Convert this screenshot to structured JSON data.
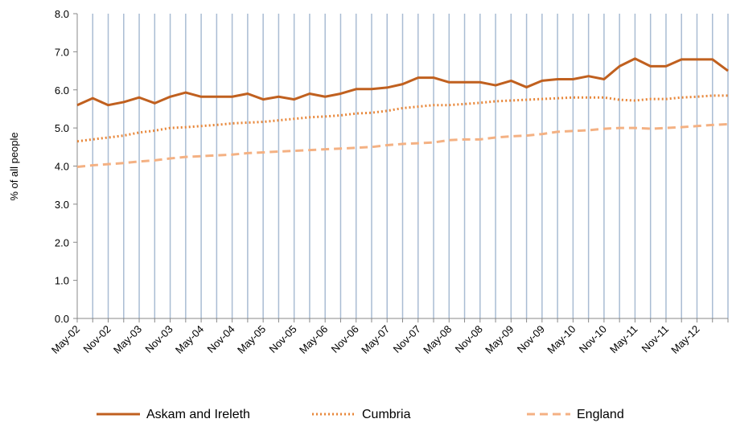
{
  "chart_data": {
    "type": "line",
    "y_label": "% of all people",
    "categories": [
      "May-02",
      null,
      "Nov-02",
      null,
      "May-03",
      null,
      "Nov-03",
      null,
      "May-04",
      null,
      "Nov-04",
      null,
      "May-05",
      null,
      "Nov-05",
      null,
      "May-06",
      null,
      "Nov-06",
      null,
      "May-07",
      null,
      "Nov-07",
      null,
      "May-08",
      null,
      "Nov-08",
      null,
      "May-09",
      null,
      "Nov-09",
      null,
      "May-10",
      null,
      "Nov-10",
      null,
      "May-11",
      null,
      "Nov-11",
      null,
      "May-12",
      null,
      null
    ],
    "series": [
      {
        "name": "Askam and Ireleth",
        "color": "#c0601f",
        "style": "solid",
        "values": [
          5.6,
          5.78,
          5.6,
          5.68,
          5.8,
          5.65,
          5.82,
          5.93,
          5.82,
          5.82,
          5.82,
          5.9,
          5.75,
          5.82,
          5.75,
          5.9,
          5.82,
          5.9,
          6.02,
          6.02,
          6.06,
          6.15,
          6.32,
          6.32,
          6.2,
          6.2,
          6.2,
          6.12,
          6.24,
          6.07,
          6.24,
          6.28,
          6.28,
          6.36,
          6.28,
          6.62,
          6.82,
          6.62,
          6.62,
          6.8,
          6.8,
          6.8,
          6.5
        ]
      },
      {
        "name": "Cumbria",
        "color": "#e8873a",
        "style": "dotted",
        "values": [
          4.65,
          4.7,
          4.75,
          4.8,
          4.88,
          4.93,
          5.0,
          5.02,
          5.05,
          5.08,
          5.12,
          5.14,
          5.16,
          5.2,
          5.24,
          5.28,
          5.3,
          5.33,
          5.38,
          5.4,
          5.45,
          5.52,
          5.56,
          5.6,
          5.6,
          5.63,
          5.66,
          5.7,
          5.72,
          5.74,
          5.76,
          5.78,
          5.8,
          5.8,
          5.8,
          5.74,
          5.72,
          5.76,
          5.76,
          5.8,
          5.82,
          5.85,
          5.85
        ]
      },
      {
        "name": "England",
        "color": "#f4b183",
        "style": "dashed",
        "values": [
          3.98,
          4.02,
          4.05,
          4.08,
          4.12,
          4.15,
          4.2,
          4.24,
          4.26,
          4.28,
          4.3,
          4.34,
          4.36,
          4.38,
          4.4,
          4.42,
          4.44,
          4.46,
          4.48,
          4.5,
          4.55,
          4.58,
          4.6,
          4.62,
          4.68,
          4.7,
          4.7,
          4.75,
          4.78,
          4.8,
          4.84,
          4.9,
          4.92,
          4.94,
          4.98,
          5.0,
          5.0,
          4.98,
          5.0,
          5.02,
          5.05,
          5.08,
          5.1
        ]
      }
    ],
    "ylim": [
      0,
      8
    ],
    "yticks": [
      {
        "value": 0,
        "label": "0.0"
      },
      {
        "value": 1,
        "label": "1.0"
      },
      {
        "value": 2,
        "label": "2.0"
      },
      {
        "value": 3,
        "label": "3.0"
      },
      {
        "value": 4,
        "label": "4.0"
      },
      {
        "value": 5,
        "label": "5.0"
      },
      {
        "value": 6,
        "label": "6.0"
      },
      {
        "value": 7,
        "label": "7.0"
      },
      {
        "value": 8,
        "label": "8.0"
      }
    ],
    "grid": "x",
    "legend": "bottom"
  }
}
